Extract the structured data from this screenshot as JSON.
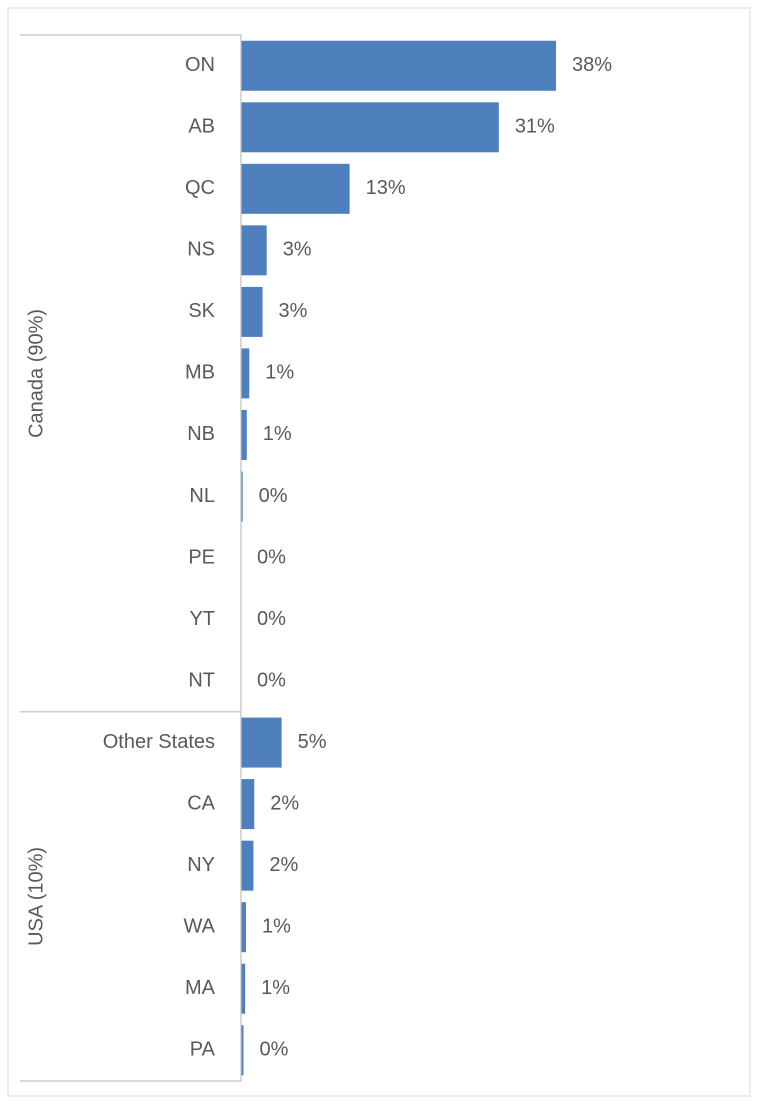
{
  "chart_data": {
    "type": "bar",
    "orientation": "horizontal",
    "color": "#4e80bd",
    "groups": [
      {
        "label": "Canada (90%)",
        "categories": [
          "ON",
          "AB",
          "QC",
          "NS",
          "SK",
          "MB",
          "NB",
          "NL",
          "PE",
          "YT",
          "NT"
        ],
        "values": [
          38,
          31.1,
          13.1,
          3.1,
          2.6,
          1,
          0.7,
          0.2,
          0,
          0,
          0
        ],
        "value_labels": [
          "38%",
          "31%",
          "13%",
          "3%",
          "3%",
          "1%",
          "1%",
          "0%",
          "0%",
          "0%",
          "0%"
        ]
      },
      {
        "label": "USA (10%)",
        "categories": [
          "Other States",
          "CA",
          "NY",
          "WA",
          "MA",
          "PA"
        ],
        "values": [
          4.9,
          1.6,
          1.5,
          0.6,
          0.5,
          0.3
        ],
        "value_labels": [
          "5%",
          "2%",
          "2%",
          "1%",
          "1%",
          "0%"
        ]
      }
    ]
  }
}
